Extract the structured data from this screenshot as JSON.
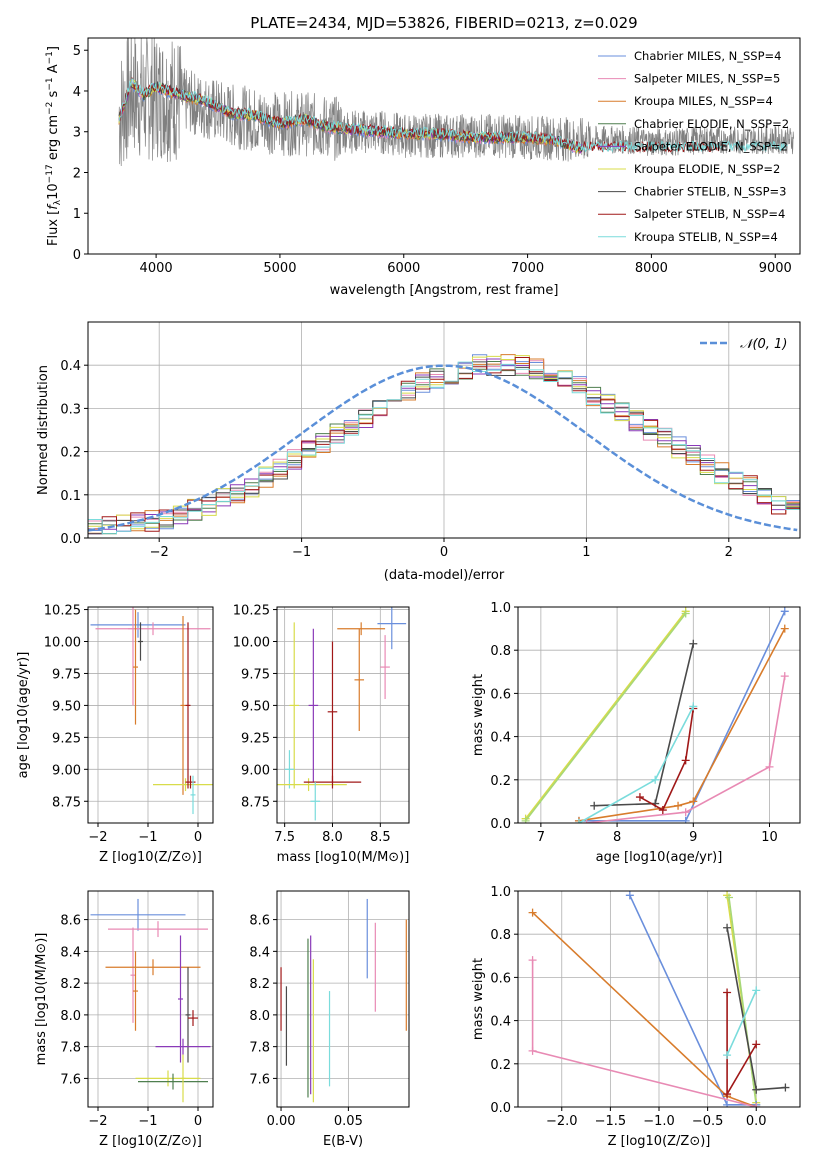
{
  "chart_data": [
    {
      "type": "line",
      "title": "PLATE=2434, MJD=53826, FIBERID=0213, z=0.029",
      "xlabel": "wavelength [Angstrom, rest frame]",
      "ylabel": "Flux [f_λ10^-17 erg cm^-2 s^-1 A^-1]",
      "xlim": [
        3450,
        9200
      ],
      "ylim": [
        0,
        5.3
      ],
      "xticks": [
        "4000",
        "5000",
        "6000",
        "7000",
        "8000",
        "9000"
      ],
      "yticks": [
        "0",
        "1",
        "2",
        "3",
        "4",
        "5"
      ],
      "grid": false,
      "legend_position": "top-right",
      "model_samples": {
        "x": [
          3700,
          3800,
          3900,
          4000,
          4200,
          4400,
          4600,
          4800,
          5000,
          5200,
          5400,
          5600,
          5800,
          6000,
          6200,
          6400,
          6600,
          6800,
          7000,
          7200,
          7400
        ],
        "y": [
          3.3,
          4.2,
          3.9,
          4.1,
          3.9,
          3.75,
          3.45,
          3.4,
          3.2,
          3.3,
          3.1,
          3.05,
          3.0,
          2.95,
          2.95,
          2.9,
          2.85,
          2.85,
          2.85,
          2.8,
          2.6
        ]
      },
      "data_samples": {
        "x": [
          3700,
          3800,
          3900,
          4000,
          4200,
          4400,
          4600,
          4800,
          5000,
          5200,
          5400,
          5600,
          5800,
          6000,
          6200,
          6400,
          6600,
          6800,
          7000,
          7200,
          7400,
          7600,
          7800,
          8000,
          8200,
          8400,
          8600,
          8800,
          9000
        ],
        "y": [
          3.4,
          4.0,
          3.8,
          3.9,
          3.8,
          3.6,
          3.4,
          3.3,
          3.2,
          3.2,
          3.1,
          3.0,
          3.0,
          2.9,
          2.9,
          2.9,
          2.9,
          2.9,
          2.85,
          2.85,
          2.8,
          2.8,
          2.8,
          2.75,
          2.75,
          2.8,
          2.8,
          2.8,
          2.8
        ]
      },
      "series": [
        {
          "name": "Chabrier MILES, N_SSP=4",
          "color": "#6a8fdc"
        },
        {
          "name": "Salpeter MILES, N_SSP=5",
          "color": "#e88ab4"
        },
        {
          "name": "Kroupa MILES, N_SSP=4",
          "color": "#d87c2c"
        },
        {
          "name": "Chabrier ELODIE, N_SSP=2",
          "color": "#4f7f4f"
        },
        {
          "name": "Salpeter ELODIE, N_SSP=2",
          "color": "#8a3ab8"
        },
        {
          "name": "Kroupa ELODIE, N_SSP=2",
          "color": "#d8dc4a"
        },
        {
          "name": "Chabrier STELIB, N_SSP=3",
          "color": "#4a4a4a"
        },
        {
          "name": "Salpeter STELIB, N_SSP=4",
          "color": "#a01818"
        },
        {
          "name": "Kroupa STELIB, N_SSP=4",
          "color": "#7adcdc"
        }
      ]
    },
    {
      "type": "line",
      "xlabel": "(data-model)/error",
      "ylabel": "Normed distribution",
      "xlim": [
        -2.5,
        2.5
      ],
      "ylim": [
        0,
        0.5
      ],
      "xticks": [
        "−2",
        "−1",
        "0",
        "1",
        "2"
      ],
      "yticks": [
        "0.0",
        "0.1",
        "0.2",
        "0.3",
        "0.4"
      ],
      "grid": true,
      "legend_position": "top-right",
      "gaussian": {
        "name": "𝒩(0, 1)",
        "color": "#5a8fd8"
      },
      "histogram": {
        "bin_width": 0.1,
        "bin_start": -2.5,
        "approx_counts": [
          0.02,
          0.025,
          0.03,
          0.035,
          0.04,
          0.045,
          0.055,
          0.065,
          0.075,
          0.09,
          0.1,
          0.12,
          0.14,
          0.16,
          0.18,
          0.2,
          0.22,
          0.24,
          0.26,
          0.28,
          0.3,
          0.32,
          0.34,
          0.36,
          0.37,
          0.38,
          0.39,
          0.4,
          0.4,
          0.4,
          0.4,
          0.39,
          0.38,
          0.37,
          0.35,
          0.33,
          0.31,
          0.29,
          0.27,
          0.25,
          0.23,
          0.21,
          0.19,
          0.17,
          0.15,
          0.13,
          0.12,
          0.1,
          0.08,
          0.07
        ]
      }
    },
    {
      "type": "scatter",
      "xlabel": "Z [log10(Z/Z⊙)]",
      "ylabel": "age  [log10(age/yr)]",
      "xlim": [
        -2.2,
        0.3
      ],
      "ylim": [
        8.58,
        10.27
      ],
      "xticks": [
        "−2",
        "−1",
        "0"
      ],
      "yticks": [
        "8.75",
        "9.00",
        "9.25",
        "9.50",
        "9.75",
        "10.00",
        "10.25"
      ],
      "grid": true,
      "points": [
        {
          "x": -1.2,
          "y": 10.13,
          "xerr": 0.95,
          "yerr": 0.1,
          "color": "#6a8fdc"
        },
        {
          "x": -0.9,
          "y": 10.1,
          "xerr": 1.15,
          "yerr": 0.05,
          "color": "#e88ab4"
        },
        {
          "x": -1.3,
          "y": 10.1,
          "xerr": 0.1,
          "yerr": 0.6,
          "color": "#e88ab4"
        },
        {
          "x": -1.25,
          "y": 9.8,
          "xerr": 0.05,
          "yerr": 0.45,
          "color": "#d87c2c"
        },
        {
          "x": -1.15,
          "y": 10.0,
          "xerr": 0.05,
          "yerr": 0.15,
          "color": "#4a4a4a"
        },
        {
          "x": -0.3,
          "y": 9.5,
          "xerr": 0.05,
          "yerr": 0.7,
          "color": "#d87c2c"
        },
        {
          "x": -0.25,
          "y": 8.88,
          "xerr": 0.65,
          "yerr": 0.05,
          "color": "#d8dc4a"
        },
        {
          "x": -0.2,
          "y": 9.5,
          "xerr": 0.05,
          "yerr": 0.65,
          "color": "#a01818"
        },
        {
          "x": -0.15,
          "y": 8.9,
          "xerr": 0.1,
          "yerr": 0.05,
          "color": "#a01818"
        },
        {
          "x": -0.1,
          "y": 8.8,
          "xerr": 0.05,
          "yerr": 0.15,
          "color": "#7adcdc"
        }
      ]
    },
    {
      "type": "scatter",
      "xlabel": "mass [log10(M/M⊙)]",
      "ylabel": "",
      "xlim": [
        7.42,
        8.8
      ],
      "ylim": [
        8.58,
        10.27
      ],
      "xticks": [
        "7.5",
        "8.0",
        "8.5"
      ],
      "yticks": [
        "8.75",
        "9.00",
        "9.25",
        "9.50",
        "9.75",
        "10.00",
        "10.25"
      ],
      "grid": true,
      "points": [
        {
          "x": 8.62,
          "y": 10.14,
          "xerr": 0.15,
          "yerr": 0.2,
          "color": "#6a8fdc"
        },
        {
          "x": 8.3,
          "y": 10.1,
          "xerr": 0.25,
          "yerr": 0.05,
          "color": "#d87c2c"
        },
        {
          "x": 8.28,
          "y": 9.7,
          "xerr": 0.05,
          "yerr": 0.4,
          "color": "#d87c2c"
        },
        {
          "x": 8.55,
          "y": 9.8,
          "xerr": 0.05,
          "yerr": 0.25,
          "color": "#e88ab4"
        },
        {
          "x": 7.6,
          "y": 9.5,
          "xerr": 0.05,
          "yerr": 0.65,
          "color": "#d8dc4a"
        },
        {
          "x": 7.55,
          "y": 9.0,
          "xerr": 0.05,
          "yerr": 0.15,
          "color": "#7adcdc"
        },
        {
          "x": 7.8,
          "y": 9.5,
          "xerr": 0.05,
          "yerr": 0.6,
          "color": "#8a3ab8"
        },
        {
          "x": 8.0,
          "y": 9.45,
          "xerr": 0.05,
          "yerr": 0.55,
          "color": "#a01818"
        },
        {
          "x": 7.75,
          "y": 8.88,
          "xerr": 0.4,
          "yerr": 0.05,
          "color": "#d8dc4a"
        },
        {
          "x": 8.0,
          "y": 8.9,
          "xerr": 0.3,
          "yerr": 0.05,
          "color": "#a01818"
        },
        {
          "x": 7.82,
          "y": 8.75,
          "xerr": 0.05,
          "yerr": 0.15,
          "color": "#7adcdc"
        }
      ]
    },
    {
      "type": "line",
      "xlabel": "age  [log10(age/yr)]",
      "ylabel": "mass weight",
      "xlim": [
        6.7,
        10.4
      ],
      "ylim": [
        0,
        1.0
      ],
      "xticks": [
        "7",
        "8",
        "9",
        "10"
      ],
      "yticks": [
        "0.0",
        "0.2",
        "0.4",
        "0.6",
        "0.8",
        "1.0"
      ],
      "grid": true,
      "series": [
        {
          "color": "#d8dc4a",
          "x": [
            6.8,
            8.9
          ],
          "y": [
            0.02,
            0.98
          ]
        },
        {
          "color": "#a8d878",
          "x": [
            6.8,
            8.9
          ],
          "y": [
            0.01,
            0.97
          ]
        },
        {
          "color": "#6a8fdc",
          "x": [
            7.5,
            8.9,
            10.2
          ],
          "y": [
            0.01,
            0.01,
            0.98
          ]
        },
        {
          "color": "#d87c2c",
          "x": [
            7.5,
            8.8,
            9.0,
            10.2
          ],
          "y": [
            0.01,
            0.08,
            0.1,
            0.9
          ]
        },
        {
          "color": "#e88ab4",
          "x": [
            7.6,
            8.9,
            10.0,
            10.2
          ],
          "y": [
            0.0,
            0.05,
            0.26,
            0.68
          ]
        },
        {
          "color": "#4a4a4a",
          "x": [
            7.7,
            8.5,
            9.0
          ],
          "y": [
            0.08,
            0.09,
            0.83
          ]
        },
        {
          "color": "#a01818",
          "x": [
            8.3,
            8.6,
            8.9,
            9.0
          ],
          "y": [
            0.12,
            0.06,
            0.29,
            0.53
          ]
        },
        {
          "color": "#7adcdc",
          "x": [
            7.5,
            8.5,
            9.0
          ],
          "y": [
            0.0,
            0.2,
            0.54
          ]
        }
      ]
    },
    {
      "type": "scatter",
      "xlabel": "Z [log10(Z/Z⊙)]",
      "ylabel": "mass [log10(M/M⊙)]",
      "xlim": [
        -2.2,
        0.3
      ],
      "ylim": [
        7.42,
        8.78
      ],
      "xticks": [
        "−2",
        "−1",
        "0"
      ],
      "yticks": [
        "7.6",
        "7.8",
        "8.0",
        "8.2",
        "8.4",
        "8.6"
      ],
      "grid": true,
      "points": [
        {
          "x": -1.2,
          "y": 8.63,
          "xerr": 0.95,
          "yerr": 0.1,
          "color": "#6a8fdc"
        },
        {
          "x": -0.8,
          "y": 8.54,
          "xerr": 1.0,
          "yerr": 0.05,
          "color": "#e88ab4"
        },
        {
          "x": -1.3,
          "y": 8.25,
          "xerr": 0.05,
          "yerr": 0.3,
          "color": "#e88ab4"
        },
        {
          "x": -1.25,
          "y": 8.15,
          "xerr": 0.05,
          "yerr": 0.25,
          "color": "#d87c2c"
        },
        {
          "x": -0.9,
          "y": 8.3,
          "xerr": 0.95,
          "yerr": 0.05,
          "color": "#d87c2c"
        },
        {
          "x": -0.35,
          "y": 8.1,
          "xerr": 0.05,
          "yerr": 0.4,
          "color": "#8a3ab8"
        },
        {
          "x": -0.2,
          "y": 8.0,
          "xerr": 0.05,
          "yerr": 0.3,
          "color": "#4a4a4a"
        },
        {
          "x": -0.3,
          "y": 7.8,
          "xerr": 0.55,
          "yerr": 0.05,
          "color": "#8a3ab8"
        },
        {
          "x": -0.6,
          "y": 7.6,
          "xerr": 0.65,
          "yerr": 0.05,
          "color": "#d8dc4a"
        },
        {
          "x": -0.5,
          "y": 7.58,
          "xerr": 0.7,
          "yerr": 0.05,
          "color": "#4f7f4f"
        },
        {
          "x": -0.1,
          "y": 7.98,
          "xerr": 0.1,
          "yerr": 0.05,
          "color": "#a01818"
        },
        {
          "x": -0.3,
          "y": 7.6,
          "xerr": 0.05,
          "yerr": 0.15,
          "color": "#d8dc4a"
        }
      ]
    },
    {
      "type": "scatter",
      "xlabel": "E(B-V)",
      "ylabel": "",
      "xlim": [
        -0.003,
        0.095
      ],
      "ylim": [
        7.42,
        8.78
      ],
      "xticks": [
        "0.00",
        "0.05"
      ],
      "yticks": [
        "7.6",
        "7.8",
        "8.0",
        "8.2",
        "8.4",
        "8.6"
      ],
      "grid": true,
      "points": [
        {
          "x": 0.0,
          "y": 8.1,
          "xerr": 0.0,
          "yerr": 0.2,
          "color": "#a01818"
        },
        {
          "x": 0.004,
          "y": 7.93,
          "xerr": 0.0,
          "yerr": 0.25,
          "color": "#4a4a4a"
        },
        {
          "x": 0.02,
          "y": 7.98,
          "xerr": 0.0,
          "yerr": 0.5,
          "color": "#4f7f4f"
        },
        {
          "x": 0.022,
          "y": 8.0,
          "xerr": 0.0,
          "yerr": 0.5,
          "color": "#8a3ab8"
        },
        {
          "x": 0.024,
          "y": 7.9,
          "xerr": 0.0,
          "yerr": 0.45,
          "color": "#d8dc4a"
        },
        {
          "x": 0.036,
          "y": 7.85,
          "xerr": 0.0,
          "yerr": 0.3,
          "color": "#7adcdc"
        },
        {
          "x": 0.064,
          "y": 8.48,
          "xerr": 0.0,
          "yerr": 0.25,
          "color": "#6a8fdc"
        },
        {
          "x": 0.07,
          "y": 8.3,
          "xerr": 0.0,
          "yerr": 0.28,
          "color": "#e88ab4"
        },
        {
          "x": 0.093,
          "y": 8.25,
          "xerr": 0.0,
          "yerr": 0.35,
          "color": "#d87c2c"
        }
      ]
    },
    {
      "type": "line",
      "xlabel": "Z [log10(Z/Z⊙)]",
      "ylabel": "mass weight",
      "xlim": [
        -2.45,
        0.45
      ],
      "ylim": [
        0,
        1.0
      ],
      "xticks": [
        "−2.0",
        "−1.5",
        "−1.0",
        "−0.5",
        "0.0"
      ],
      "yticks": [
        "0.0",
        "0.2",
        "0.4",
        "0.6",
        "0.8",
        "1.0"
      ],
      "grid": true,
      "series": [
        {
          "color": "#d8dc4a",
          "x": [
            -0.3,
            0.0
          ],
          "y": [
            0.98,
            0.02
          ]
        },
        {
          "color": "#a8d878",
          "x": [
            -0.28,
            0.0
          ],
          "y": [
            0.97,
            0.01
          ]
        },
        {
          "color": "#6a8fdc",
          "x": [
            -1.3,
            -0.3,
            0.0
          ],
          "y": [
            0.98,
            0.01,
            0.01
          ]
        },
        {
          "color": "#d87c2c",
          "x": [
            -2.3,
            -0.3,
            0.0
          ],
          "y": [
            0.9,
            0.05,
            0.0
          ]
        },
        {
          "color": "#e88ab4",
          "x": [
            -2.3,
            -2.3,
            0.0
          ],
          "y": [
            0.68,
            0.26,
            0.0
          ]
        },
        {
          "color": "#4a4a4a",
          "x": [
            -0.3,
            0.0,
            0.3
          ],
          "y": [
            0.83,
            0.08,
            0.09
          ]
        },
        {
          "color": "#a01818",
          "x": [
            -0.3,
            -0.3,
            0.0
          ],
          "y": [
            0.53,
            0.06,
            0.29
          ]
        },
        {
          "color": "#7adcdc",
          "x": [
            -0.3,
            0.0
          ],
          "y": [
            0.24,
            0.54
          ]
        }
      ]
    }
  ]
}
